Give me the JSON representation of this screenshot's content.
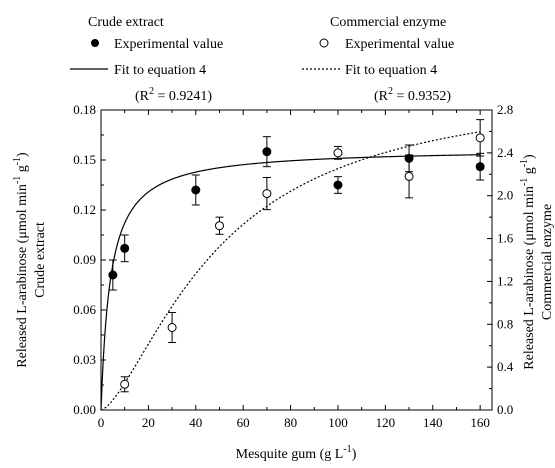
{
  "chart_data": {
    "type": "scatter",
    "xlabel_main": "Mesquite gum (g L",
    "xlabel_sup": "-1",
    "xlabel_end": ")",
    "ylabel_left": {
      "line1_a": "Released L-arabinose (μmol min",
      "sup1": "-1",
      "line1_b": " g",
      "sup2": "-1",
      "line1_c": ")",
      "line2": "Crude extract"
    },
    "ylabel_right": {
      "line1_a": "Released L-arabinose (μmol min",
      "sup1": "-1",
      "line1_b": " g",
      "sup2": "-1",
      "line1_c": ")",
      "line2": "Commercial enzyme"
    },
    "xlim": [
      0,
      165
    ],
    "ylim_left": [
      0,
      0.18
    ],
    "ylim_right": [
      0,
      2.8
    ],
    "x_ticks": [
      "0",
      "20",
      "40",
      "60",
      "80",
      "100",
      "120",
      "140",
      "160"
    ],
    "y_left_ticks": [
      "0.00",
      "0.03",
      "0.06",
      "0.09",
      "0.12",
      "0.15",
      "0.18"
    ],
    "y_right_ticks": [
      "0.0",
      "0.4",
      "0.8",
      "1.2",
      "1.6",
      "2.0",
      "2.4",
      "2.8"
    ],
    "series": [
      {
        "name": "Experimental value",
        "group": "Crude extract",
        "axis": "left",
        "marker": "filled-circle",
        "points": [
          {
            "x": 5,
            "y": 0.081,
            "err": 0.009
          },
          {
            "x": 10,
            "y": 0.097,
            "err": 0.008
          },
          {
            "x": 40,
            "y": 0.132,
            "err": 0.009
          },
          {
            "x": 70,
            "y": 0.155,
            "err": 0.009
          },
          {
            "x": 100,
            "y": 0.135,
            "err": 0.005
          },
          {
            "x": 130,
            "y": 0.151,
            "err": 0.008
          },
          {
            "x": 160,
            "y": 0.146,
            "err": 0.008
          }
        ]
      },
      {
        "name": "Experimental value",
        "group": "Commercial enzyme",
        "axis": "right",
        "marker": "open-circle",
        "points": [
          {
            "x": 10,
            "y": 0.24,
            "err": 0.07
          },
          {
            "x": 30,
            "y": 0.77,
            "err": 0.14
          },
          {
            "x": 50,
            "y": 1.72,
            "err": 0.08
          },
          {
            "x": 70,
            "y": 2.02,
            "err": 0.15
          },
          {
            "x": 100,
            "y": 2.4,
            "err": 0.06
          },
          {
            "x": 130,
            "y": 2.18,
            "err": 0.2
          },
          {
            "x": 160,
            "y": 2.54,
            "err": 0.17
          }
        ]
      }
    ],
    "fits": [
      {
        "name": "Fit to equation 4",
        "r2_label": "(R",
        "r2_sup": "2",
        "r2_value": " = 0.9241)",
        "axis": "left",
        "style": "solid",
        "model": "michaelis-menten",
        "vmax": 0.157,
        "km": 4.0
      },
      {
        "name": "Fit to equation 4",
        "r2_label": "(R",
        "r2_sup": "2",
        "r2_value": " = 0.9352)",
        "axis": "right",
        "style": "dashed",
        "model": "sigmoidal",
        "vmax": 3.05,
        "km": 50,
        "n": 1.5
      }
    ],
    "legend": {
      "left_title": "Crude extract",
      "right_title": "Commercial enzyme",
      "placement": "top"
    }
  }
}
